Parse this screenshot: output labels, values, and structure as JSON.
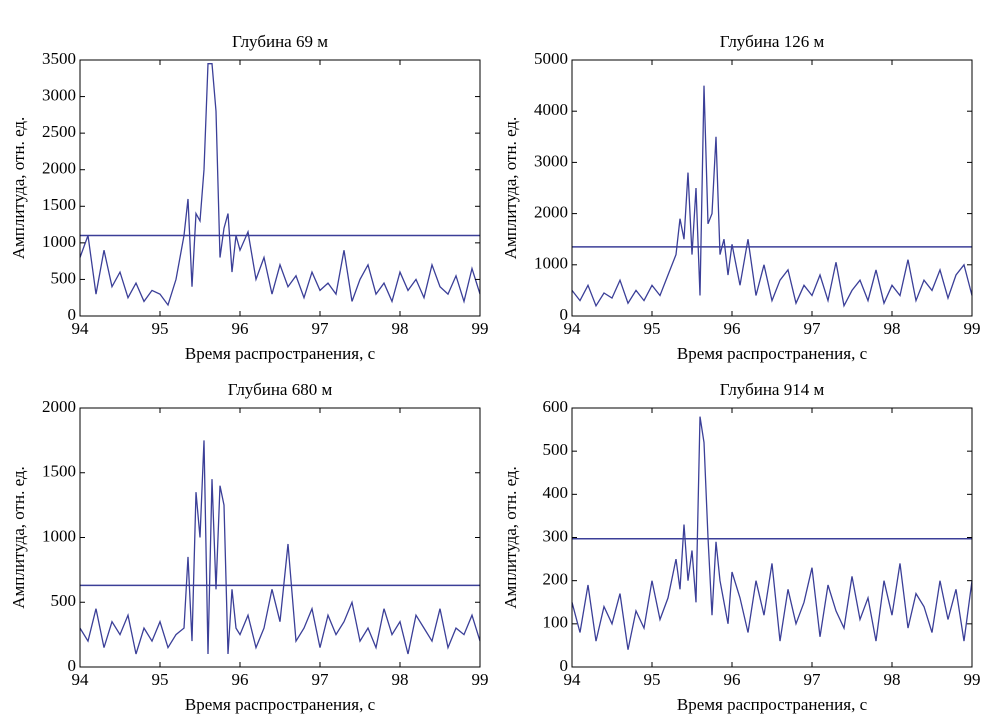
{
  "chart_data": [
    {
      "type": "line",
      "title": "Глубина 69 м",
      "xlabel": "Время распространения, с",
      "ylabel": "Амплитуда, отн. ед.",
      "color": "#3b3f98",
      "x": [
        94,
        94.1,
        94.2,
        94.3,
        94.4,
        94.5,
        94.6,
        94.7,
        94.8,
        94.9,
        95,
        95.1,
        95.2,
        95.3,
        95.35,
        95.4,
        95.45,
        95.5,
        95.55,
        95.6,
        95.65,
        95.7,
        95.75,
        95.8,
        95.85,
        95.9,
        95.95,
        96,
        96.1,
        96.2,
        96.3,
        96.4,
        96.5,
        96.6,
        96.7,
        96.8,
        96.9,
        97,
        97.1,
        97.2,
        97.3,
        97.4,
        97.5,
        97.6,
        97.7,
        97.8,
        97.9,
        98,
        98.1,
        98.2,
        98.3,
        98.4,
        98.5,
        98.6,
        98.7,
        98.8,
        98.9,
        99
      ],
      "values": [
        800,
        1100,
        300,
        900,
        400,
        600,
        250,
        450,
        200,
        350,
        300,
        150,
        500,
        1100,
        1600,
        400,
        1400,
        1300,
        2000,
        3450,
        3450,
        2800,
        800,
        1200,
        1400,
        600,
        1100,
        900,
        1150,
        500,
        800,
        300,
        700,
        400,
        550,
        250,
        600,
        350,
        450,
        300,
        900,
        200,
        500,
        700,
        300,
        450,
        200,
        600,
        350,
        500,
        250,
        700,
        400,
        300,
        550,
        200,
        650,
        300
      ],
      "threshold": 1100,
      "xlim": [
        94,
        99
      ],
      "xticks": [
        94,
        95,
        96,
        97,
        98,
        99
      ],
      "ylim": [
        0,
        3500
      ],
      "yticks": [
        0,
        500,
        1000,
        1500,
        2000,
        2500,
        3000,
        3500
      ]
    },
    {
      "type": "line",
      "title": "Глубина 126 м",
      "xlabel": "Время распространения, с",
      "ylabel": "Амплитуда, отн. ед.",
      "color": "#3b3f98",
      "x": [
        94,
        94.1,
        94.2,
        94.3,
        94.4,
        94.5,
        94.6,
        94.7,
        94.8,
        94.9,
        95,
        95.1,
        95.2,
        95.3,
        95.35,
        95.4,
        95.45,
        95.5,
        95.55,
        95.6,
        95.65,
        95.7,
        95.75,
        95.8,
        95.85,
        95.9,
        95.95,
        96,
        96.1,
        96.2,
        96.3,
        96.4,
        96.5,
        96.6,
        96.7,
        96.8,
        96.9,
        97,
        97.1,
        97.2,
        97.3,
        97.4,
        97.5,
        97.6,
        97.7,
        97.8,
        97.9,
        98,
        98.1,
        98.2,
        98.3,
        98.4,
        98.5,
        98.6,
        98.7,
        98.8,
        98.9,
        99
      ],
      "values": [
        500,
        300,
        600,
        200,
        450,
        350,
        700,
        250,
        500,
        300,
        600,
        400,
        800,
        1200,
        1900,
        1500,
        2800,
        1200,
        2500,
        400,
        4500,
        1800,
        2000,
        3500,
        1200,
        1500,
        800,
        1400,
        600,
        1500,
        400,
        1000,
        300,
        700,
        900,
        250,
        600,
        400,
        800,
        300,
        1050,
        200,
        500,
        700,
        300,
        900,
        250,
        600,
        400,
        1100,
        300,
        700,
        500,
        900,
        350,
        800,
        1000,
        400
      ],
      "threshold": 1350,
      "xlim": [
        94,
        99
      ],
      "xticks": [
        94,
        95,
        96,
        97,
        98,
        99
      ],
      "ylim": [
        0,
        5000
      ],
      "yticks": [
        0,
        1000,
        2000,
        3000,
        4000,
        5000
      ]
    },
    {
      "type": "line",
      "title": "Глубина 680 м",
      "xlabel": "Время распространения, с",
      "ylabel": "Амплитуда, отн. ед.",
      "color": "#3b3f98",
      "x": [
        94,
        94.1,
        94.2,
        94.3,
        94.4,
        94.5,
        94.6,
        94.7,
        94.8,
        94.9,
        95,
        95.1,
        95.2,
        95.3,
        95.35,
        95.4,
        95.45,
        95.5,
        95.55,
        95.6,
        95.65,
        95.7,
        95.75,
        95.8,
        95.85,
        95.9,
        95.95,
        96,
        96.1,
        96.2,
        96.3,
        96.4,
        96.5,
        96.6,
        96.7,
        96.8,
        96.9,
        97,
        97.1,
        97.2,
        97.3,
        97.4,
        97.5,
        97.6,
        97.7,
        97.8,
        97.9,
        98,
        98.1,
        98.2,
        98.3,
        98.4,
        98.5,
        98.6,
        98.7,
        98.8,
        98.9,
        99
      ],
      "values": [
        300,
        200,
        450,
        150,
        350,
        250,
        400,
        100,
        300,
        200,
        350,
        150,
        250,
        300,
        850,
        200,
        1350,
        1000,
        1750,
        100,
        1450,
        600,
        1400,
        1250,
        100,
        600,
        300,
        250,
        400,
        150,
        300,
        600,
        350,
        950,
        200,
        300,
        450,
        150,
        400,
        250,
        350,
        500,
        200,
        300,
        150,
        450,
        250,
        350,
        100,
        400,
        300,
        200,
        450,
        150,
        300,
        250,
        400,
        200
      ],
      "threshold": 630,
      "xlim": [
        94,
        99
      ],
      "xticks": [
        94,
        95,
        96,
        97,
        98,
        99
      ],
      "ylim": [
        0,
        2000
      ],
      "yticks": [
        0,
        500,
        1000,
        1500,
        2000
      ]
    },
    {
      "type": "line",
      "title": "Глубина 914 м",
      "xlabel": "Время распространения, с",
      "ylabel": "Амплитуда, отн. ед.",
      "color": "#3b3f98",
      "x": [
        94,
        94.1,
        94.2,
        94.3,
        94.4,
        94.5,
        94.6,
        94.7,
        94.8,
        94.9,
        95,
        95.1,
        95.2,
        95.3,
        95.35,
        95.4,
        95.45,
        95.5,
        95.55,
        95.6,
        95.65,
        95.7,
        95.75,
        95.8,
        95.85,
        95.9,
        95.95,
        96,
        96.1,
        96.2,
        96.3,
        96.4,
        96.5,
        96.6,
        96.7,
        96.8,
        96.9,
        97,
        97.1,
        97.2,
        97.3,
        97.4,
        97.5,
        97.6,
        97.7,
        97.8,
        97.9,
        98,
        98.1,
        98.2,
        98.3,
        98.4,
        98.5,
        98.6,
        98.7,
        98.8,
        98.9,
        99
      ],
      "values": [
        150,
        80,
        190,
        60,
        140,
        100,
        170,
        40,
        130,
        90,
        200,
        110,
        160,
        250,
        180,
        330,
        200,
        270,
        150,
        580,
        520,
        300,
        120,
        290,
        200,
        150,
        100,
        220,
        160,
        80,
        200,
        120,
        240,
        60,
        180,
        100,
        150,
        230,
        70,
        190,
        130,
        90,
        210,
        110,
        160,
        60,
        200,
        120,
        240,
        90,
        170,
        140,
        80,
        200,
        110,
        180,
        60,
        200
      ],
      "threshold": 297,
      "xlim": [
        94,
        99
      ],
      "xticks": [
        94,
        95,
        96,
        97,
        98,
        99
      ],
      "ylim": [
        0,
        600
      ],
      "yticks": [
        0,
        100,
        200,
        300,
        400,
        500,
        600
      ]
    }
  ]
}
